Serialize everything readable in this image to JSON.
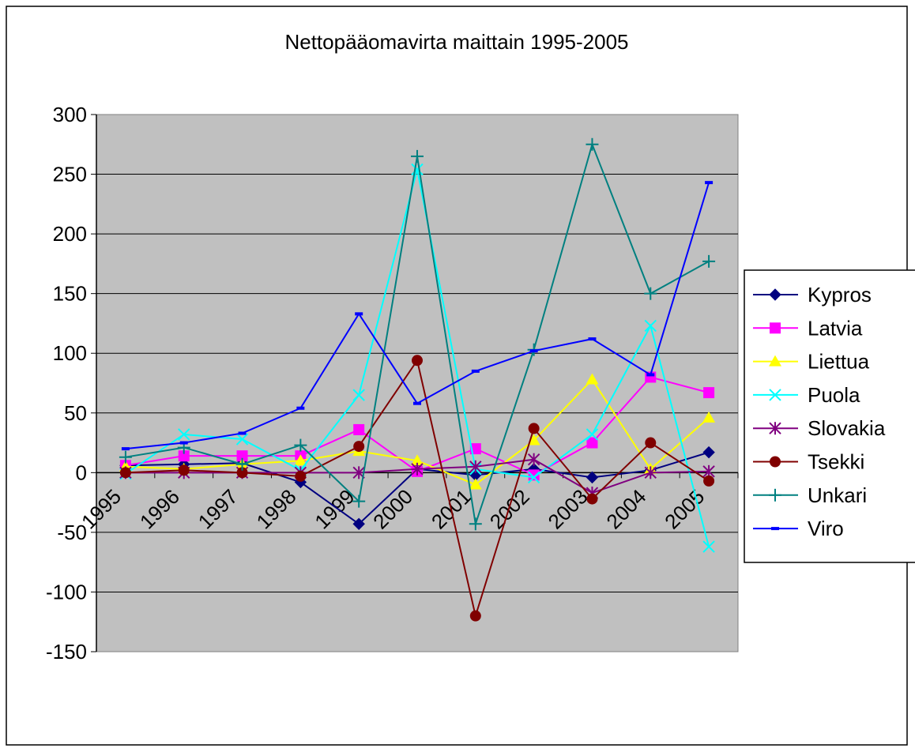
{
  "chart_data": {
    "type": "line",
    "title": "Nettopääomavirta maittain 1995-2005",
    "xlabel": "",
    "ylabel": "",
    "categories": [
      "1995",
      "1996",
      "1997",
      "1998",
      "1999",
      "2000",
      "2001",
      "2002",
      "2003",
      "2004",
      "2005"
    ],
    "ylim": [
      -150,
      300
    ],
    "yticks": [
      "300",
      "250",
      "200",
      "150",
      "100",
      "50",
      "0",
      "-50",
      "-100",
      "-150"
    ],
    "ytick_values": [
      300,
      250,
      200,
      150,
      100,
      50,
      0,
      -50,
      -100,
      -150
    ],
    "grid": true,
    "legend_position": "right",
    "plot_background": "#c0c0c0",
    "series": [
      {
        "name": "Kypros",
        "color": "#000080",
        "marker": "diamond",
        "values": [
          6,
          7,
          8,
          -8,
          -43,
          3,
          -2,
          3,
          -4,
          2,
          17
        ]
      },
      {
        "name": "Latvia",
        "color": "#ff00ff",
        "marker": "square",
        "values": [
          6,
          14,
          14,
          14,
          36,
          1,
          20,
          -2,
          25,
          80,
          67
        ]
      },
      {
        "name": "Liettua",
        "color": "#ffff00",
        "marker": "triangle",
        "values": [
          5,
          3,
          7,
          10,
          18,
          10,
          -10,
          27,
          78,
          3,
          46
        ]
      },
      {
        "name": "Puola",
        "color": "#00ffff",
        "marker": "x",
        "values": [
          -1,
          32,
          28,
          2,
          65,
          254,
          3,
          -4,
          32,
          123,
          -62
        ]
      },
      {
        "name": "Slovakia",
        "color": "#800080",
        "marker": "asterisk",
        "values": [
          0,
          0,
          0,
          0,
          0,
          3,
          5,
          11,
          -17,
          0,
          1
        ]
      },
      {
        "name": "Tsekki",
        "color": "#800000",
        "marker": "circle",
        "values": [
          0,
          2,
          0,
          -3,
          22,
          94,
          -120,
          37,
          -22,
          25,
          -7
        ]
      },
      {
        "name": "Unkari",
        "color": "#008080",
        "marker": "plus",
        "values": [
          13,
          21,
          7,
          23,
          -24,
          265,
          -43,
          103,
          275,
          150,
          177
        ]
      },
      {
        "name": "Viro",
        "color": "#0000ff",
        "marker": "dash",
        "values": [
          20,
          25,
          33,
          54,
          133,
          58,
          85,
          102,
          112,
          82,
          243
        ]
      }
    ]
  }
}
